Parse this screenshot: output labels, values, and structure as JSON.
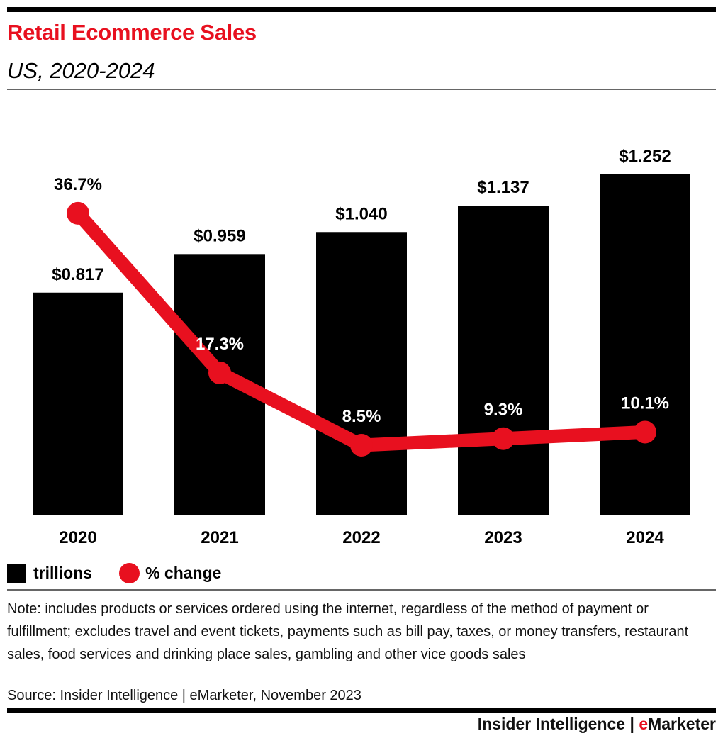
{
  "header": {
    "title": "Retail Ecommerce Sales",
    "subtitle": "US, 2020-2024"
  },
  "chart_data": {
    "type": "bar",
    "title": "Retail Ecommerce Sales",
    "subtitle": "US, 2020-2024",
    "categories": [
      "2020",
      "2021",
      "2022",
      "2023",
      "2024"
    ],
    "series": [
      {
        "name": "trillions",
        "type": "bar",
        "values": [
          0.817,
          0.959,
          1.04,
          1.137,
          1.252
        ],
        "labels": [
          "$0.817",
          "$0.959",
          "$1.040",
          "$1.137",
          "$1.252"
        ],
        "color": "#000000"
      },
      {
        "name": "% change",
        "type": "line",
        "values": [
          36.7,
          17.3,
          8.5,
          9.3,
          10.1
        ],
        "labels": [
          "36.7%",
          "17.3%",
          "8.5%",
          "9.3%",
          "10.1%"
        ],
        "color": "#e8101f"
      }
    ],
    "xlabel": "",
    "ylabel": "",
    "ylim_bars": [
      0,
      1.252
    ],
    "grid": false,
    "legend": "bottom-left"
  },
  "legend": {
    "bar_label": "trillions",
    "line_label": "% change"
  },
  "footer": {
    "note": "Note: includes products or services ordered using the internet, regardless of the method of payment or fulfillment; excludes travel and event tickets, payments such as bill pay, taxes, or money transfers, restaurant sales, food services and drinking place sales, gambling and other vice goods sales",
    "source": "Source: Insider Intelligence | eMarketer, November 2023",
    "brand_left": "Insider Intelligence | ",
    "brand_e": "e",
    "brand_right": "Marketer"
  },
  "colors": {
    "accent": "#e8101f",
    "bar": "#000000"
  }
}
